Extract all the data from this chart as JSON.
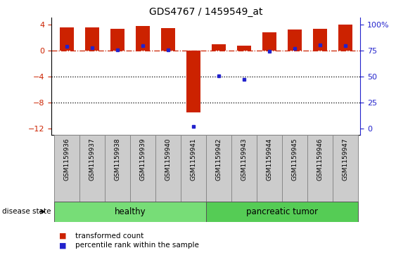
{
  "title": "GDS4767 / 1459549_at",
  "samples": [
    "GSM1159936",
    "GSM1159937",
    "GSM1159938",
    "GSM1159939",
    "GSM1159940",
    "GSM1159941",
    "GSM1159942",
    "GSM1159943",
    "GSM1159944",
    "GSM1159945",
    "GSM1159946",
    "GSM1159947"
  ],
  "red_bars": [
    3.5,
    3.5,
    3.3,
    3.8,
    3.4,
    -9.5,
    1.0,
    0.7,
    2.8,
    3.2,
    3.3,
    4.0
  ],
  "blue_dots_y": [
    0.6,
    0.4,
    0.1,
    0.7,
    0.05,
    -11.7,
    -3.9,
    -4.4,
    -0.15,
    0.3,
    0.8,
    0.7
  ],
  "ylim": [
    -13,
    5
  ],
  "yticks_left": [
    -12,
    -8,
    -4,
    0,
    4
  ],
  "yticks_right": [
    0,
    25,
    50,
    75,
    100
  ],
  "hline_y": 0,
  "dotted_lines": [
    -4,
    -8
  ],
  "group_label_healthy": "healthy",
  "group_label_tumor": "pancreatic tumor",
  "disease_state_label": "disease state",
  "legend_red": "transformed count",
  "legend_blue": "percentile rank within the sample",
  "bar_color": "#cc2200",
  "dot_color": "#2222cc",
  "bar_width": 0.55,
  "healthy_color": "#77dd77",
  "tumor_color": "#55cc55",
  "tick_label_color_left": "#cc2200",
  "tick_label_color_right": "#2222cc",
  "label_box_color": "#cccccc"
}
